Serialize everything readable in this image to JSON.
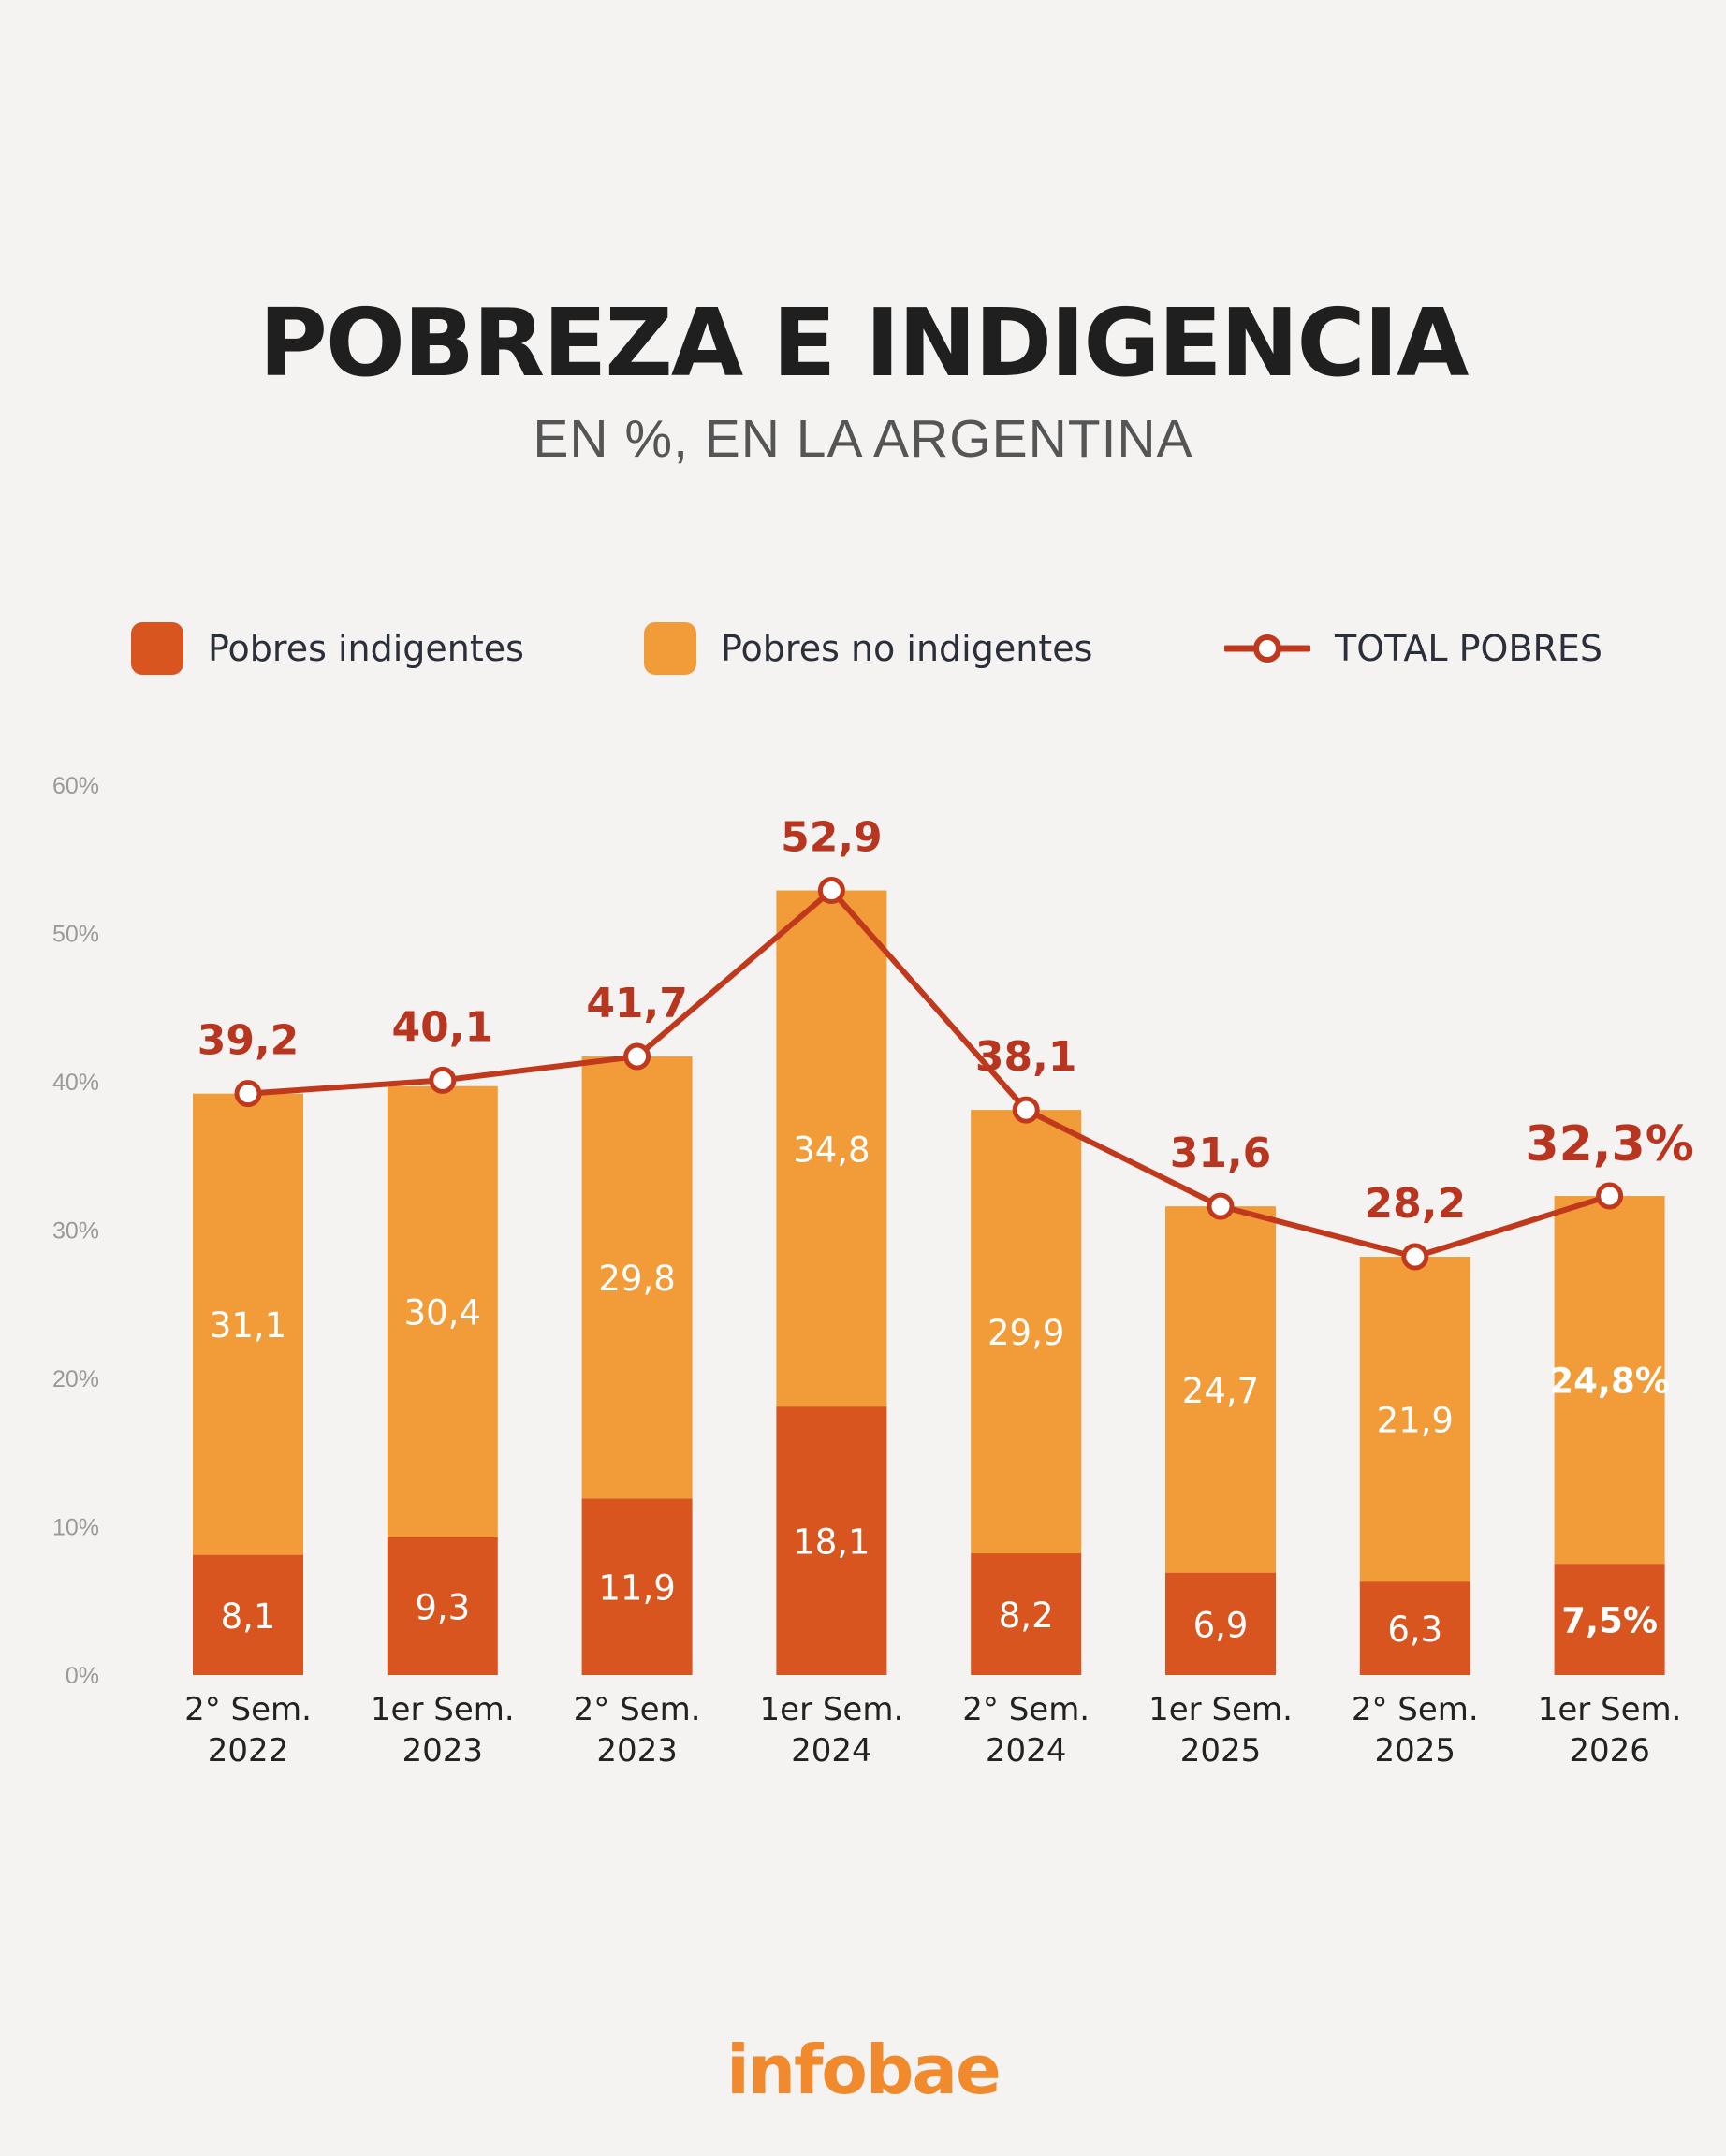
{
  "title": "POBREZA E INDIGENCIA",
  "subtitle": "EN %, EN LA ARGENTINA",
  "legend": {
    "indigentes": "Pobres indigentes",
    "no_indigentes": "Pobres no indigentes",
    "total": "TOTAL POBRES"
  },
  "colors": {
    "indigentes": "#d9551f",
    "no_indigentes": "#f19c38",
    "total_line": "#c0391d",
    "total_label": "#b8351f"
  },
  "logo": "infobae",
  "chart_data": {
    "type": "bar",
    "stacked": true,
    "categories": [
      [
        "2° Sem.",
        "2022"
      ],
      [
        "1er Sem.",
        "2023"
      ],
      [
        "2° Sem.",
        "2023"
      ],
      [
        "1er Sem.",
        "2024"
      ],
      [
        "2° Sem.",
        "2024"
      ],
      [
        "1er Sem.",
        "2025"
      ],
      [
        "2° Sem.",
        "2025"
      ],
      [
        "1er Sem.",
        "2026"
      ]
    ],
    "ylim": [
      0,
      60
    ],
    "yticks": [
      0,
      10,
      20,
      30,
      40,
      50,
      60
    ],
    "ytick_labels": [
      "0%",
      "10%",
      "20%",
      "30%",
      "40%",
      "50%",
      "60%"
    ],
    "series": [
      {
        "name": "Pobres indigentes",
        "values": [
          8.1,
          9.3,
          11.9,
          18.1,
          8.2,
          6.9,
          6.3,
          7.5
        ],
        "labels": [
          "8,1",
          "9,3",
          "11,9",
          "18,1",
          "8,2",
          "6,9",
          "6,3",
          "7,5%"
        ]
      },
      {
        "name": "Pobres no indigentes",
        "values": [
          31.1,
          30.4,
          29.8,
          34.8,
          29.9,
          24.7,
          21.9,
          24.8
        ],
        "labels": [
          "31,1",
          "30,4",
          "29,8",
          "34,8",
          "29,9",
          "24,7",
          "21,9",
          "24,8%"
        ]
      },
      {
        "name": "TOTAL POBRES",
        "type": "line",
        "values": [
          39.2,
          40.1,
          41.7,
          52.9,
          38.1,
          31.6,
          28.2,
          32.3
        ],
        "labels": [
          "39,2",
          "40,1",
          "41,7",
          "52,9",
          "38,1",
          "31,6",
          "28,2",
          "32,3%"
        ]
      }
    ],
    "legend_position": "top",
    "grid": false
  }
}
